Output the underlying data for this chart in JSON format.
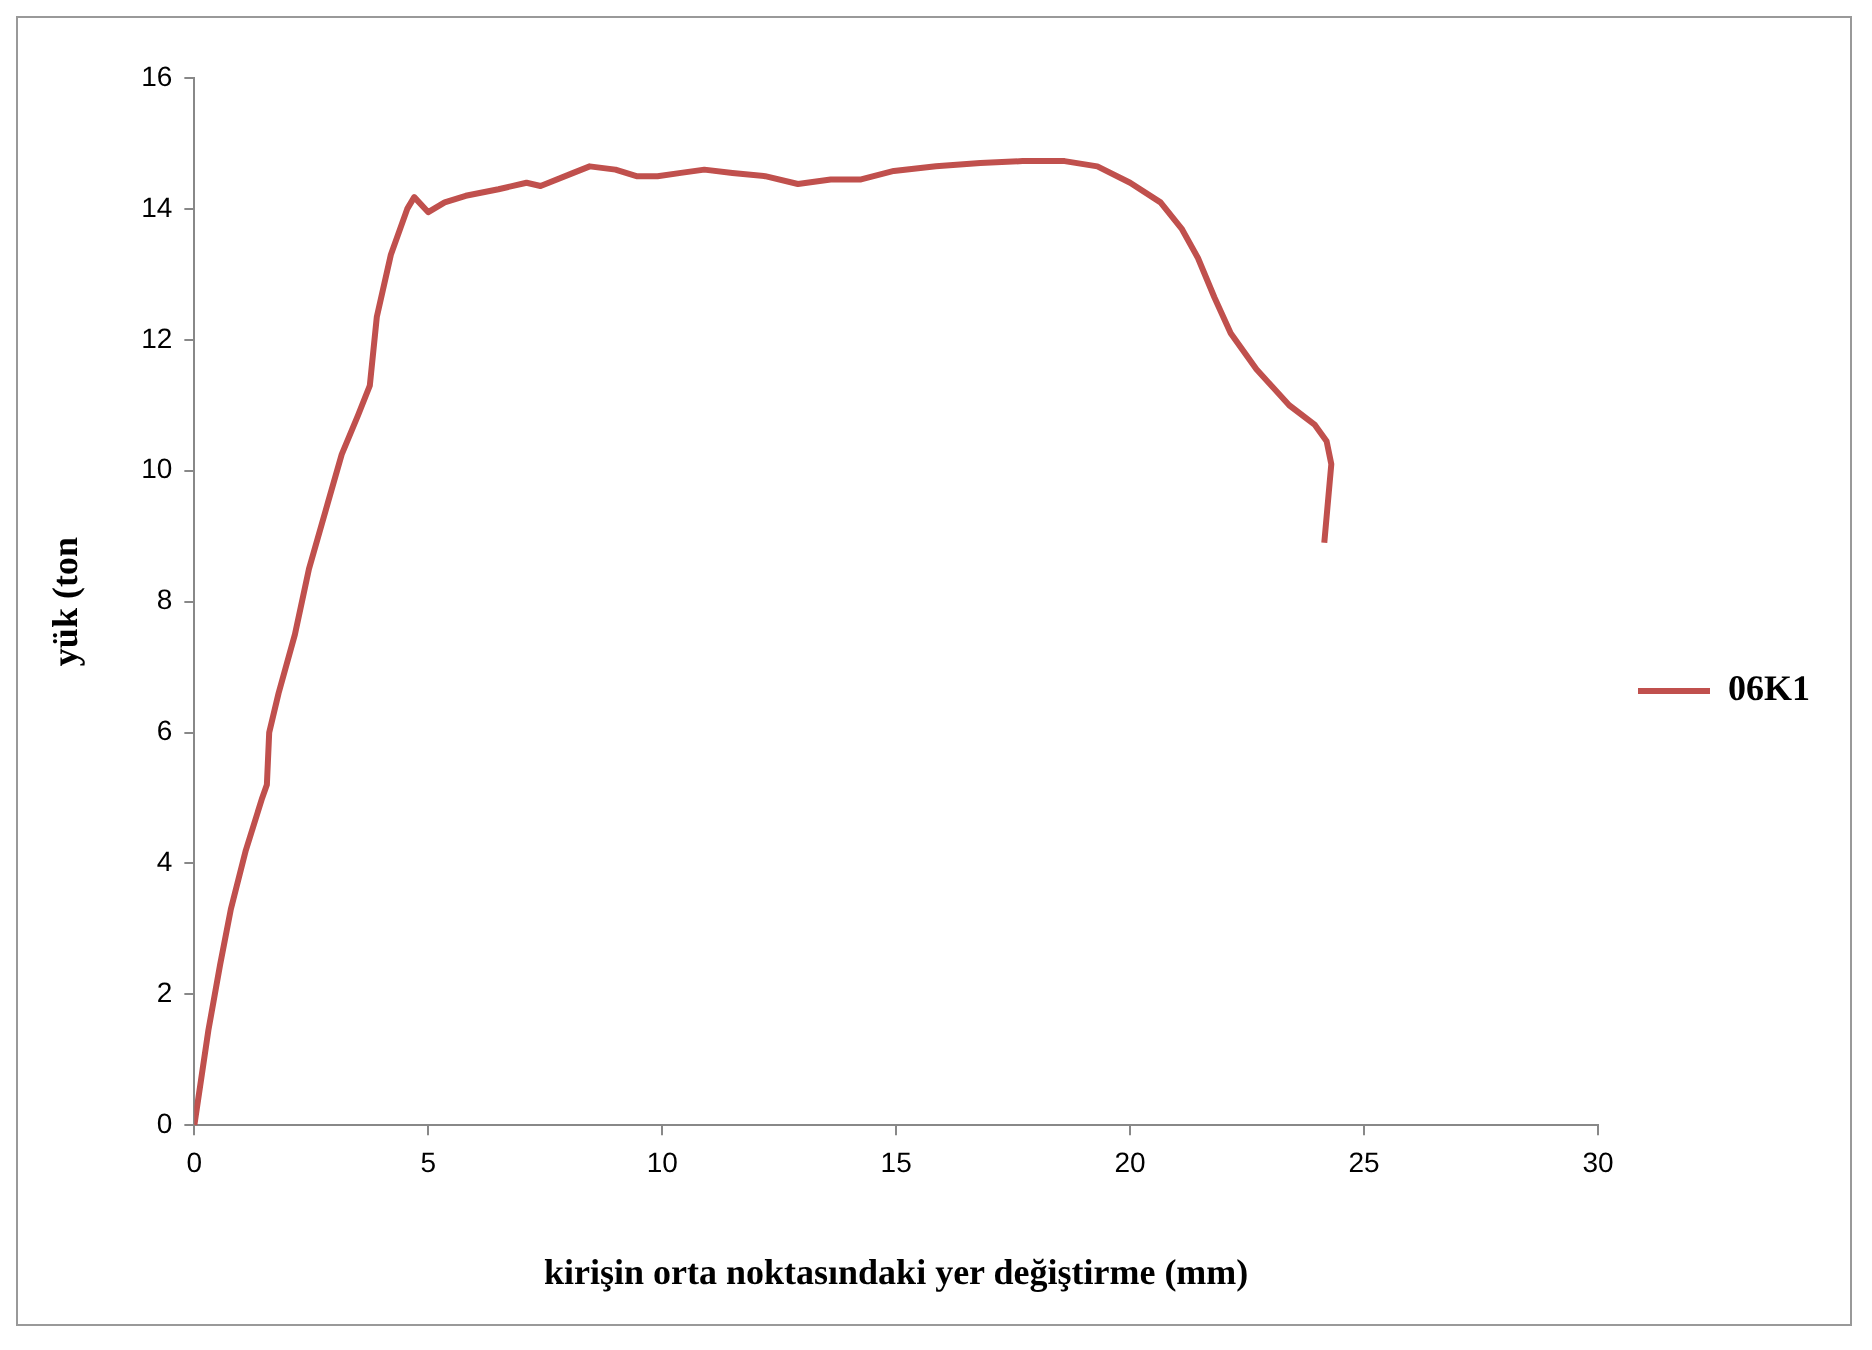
{
  "chart_data": {
    "type": "line",
    "xlabel": "kirişin orta noktasındaki yer değiştirme (mm)",
    "ylabel": "yük (ton",
    "xlim": [
      0,
      30
    ],
    "xticks": [
      0,
      5,
      10,
      15,
      20,
      25,
      30
    ],
    "ylim": [
      0,
      16
    ],
    "yticks": [
      0,
      2,
      4,
      6,
      8,
      10,
      12,
      14,
      16
    ],
    "grid": false,
    "legend": "right",
    "marker": "none",
    "line_style": "solid",
    "series": [
      {
        "name": "06K1",
        "color": "#c0504d",
        "x": [
          0,
          0.3,
          0.55,
          0.78,
          1.1,
          1.45,
          1.55,
          1.6,
          1.8,
          2.15,
          2.45,
          2.85,
          3.15,
          3.5,
          3.75,
          3.9,
          4.2,
          4.55,
          4.7,
          5.0,
          5.35,
          5.8,
          6.5,
          7.1,
          7.4,
          8.1,
          8.45,
          9.0,
          9.45,
          9.9,
          10.4,
          10.9,
          11.5,
          12.2,
          12.9,
          13.6,
          14.25,
          14.95,
          15.85,
          16.8,
          17.7,
          18.6,
          19.3,
          20.0,
          20.65,
          21.1,
          21.45,
          21.8,
          22.15,
          22.7,
          23.4,
          23.95,
          24.2,
          24.3,
          24.15
        ],
        "values": [
          0,
          1.45,
          2.45,
          3.3,
          4.2,
          5.0,
          5.2,
          6.0,
          6.6,
          7.5,
          8.5,
          9.5,
          10.25,
          10.85,
          11.3,
          12.35,
          13.3,
          14.0,
          14.18,
          13.95,
          14.1,
          14.2,
          14.3,
          14.4,
          14.35,
          14.55,
          14.65,
          14.6,
          14.5,
          14.5,
          14.55,
          14.6,
          14.55,
          14.5,
          14.38,
          14.45,
          14.45,
          14.58,
          14.65,
          14.7,
          14.73,
          14.73,
          14.65,
          14.4,
          14.1,
          13.7,
          13.25,
          12.65,
          12.1,
          11.55,
          11.0,
          10.7,
          10.45,
          10.1,
          8.9
        ]
      }
    ]
  }
}
